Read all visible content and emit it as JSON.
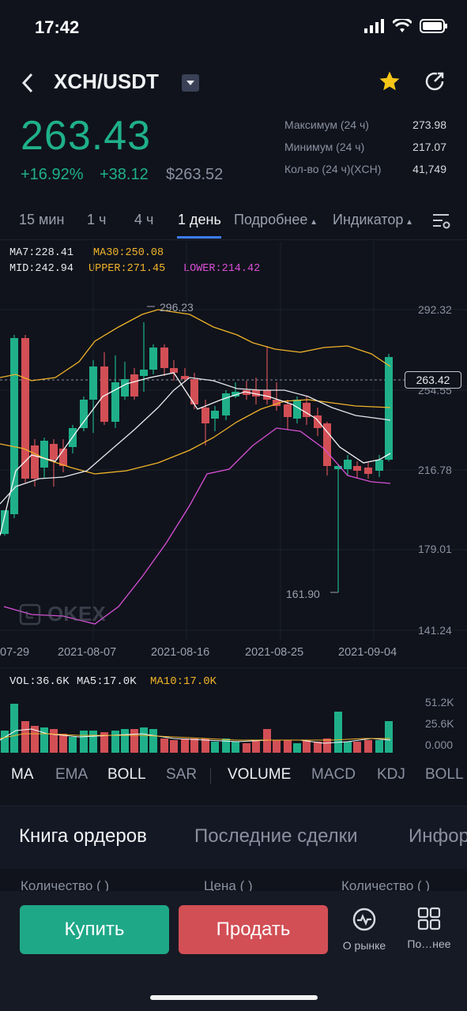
{
  "status_bar": {
    "time": "17:42"
  },
  "header": {
    "pair": "XCH/USDT"
  },
  "ticker": {
    "last_price": "263.43",
    "change_pct": "+16.92%",
    "change_abs": "+38.12",
    "usd_price": "$263.52",
    "stats": [
      {
        "label": "Максимум (24 ч)",
        "value": "273.98"
      },
      {
        "label": "Минимум (24 ч)",
        "value": "217.07"
      },
      {
        "label": "Кол-во (24 ч)(XCH)",
        "value": "41,749"
      }
    ]
  },
  "timeframes": [
    "15 мин",
    "1 ч",
    "4 ч",
    "1 день",
    "Подробнее",
    "Индикатор"
  ],
  "active_timeframe": "1 день",
  "indicators_line1": {
    "ma7": "MA7:228.41",
    "ma30": "MA30:250.08"
  },
  "indicators_line2": {
    "mid": "MID:242.94",
    "upper": "UPPER:271.45",
    "lower": "LOWER:214.42"
  },
  "chart": {
    "price_axis": [
      "292.32",
      "254.55",
      "216.78",
      "179.01",
      "141.24"
    ],
    "dates": [
      "07-29",
      "2021-08-07",
      "2021-08-16",
      "2021-08-25",
      "2021-09-04"
    ],
    "high_label": "296.23",
    "low_label": "161.90",
    "current_tag": "263.42",
    "watermark": "OKEX"
  },
  "volume": {
    "vol": "VOL:36.6K",
    "ma5": "MA5:17.0K",
    "ma10": "MA10:17.0K",
    "axis": [
      "51.2K",
      "25.6K",
      "0.000"
    ]
  },
  "indicator_tabs": [
    "MA",
    "EMA",
    "BOLL",
    "SAR",
    "VOLUME",
    "MACD",
    "KDJ",
    "BOLL"
  ],
  "book_tabs": [
    "Книга ордеров",
    "Последние сделки",
    "Инфор"
  ],
  "columns": [
    "Количество ( )",
    "Цена ( )",
    "Количество ( )"
  ],
  "actions": {
    "buy": "Купить",
    "sell": "Продать",
    "market": "О рынке",
    "more": "По…нее"
  },
  "colors": {
    "up": "#1fb08a",
    "down": "#d24f55",
    "ma30": "#f0b429",
    "lower": "#d84fd6",
    "accent": "#3b7cf6"
  }
}
